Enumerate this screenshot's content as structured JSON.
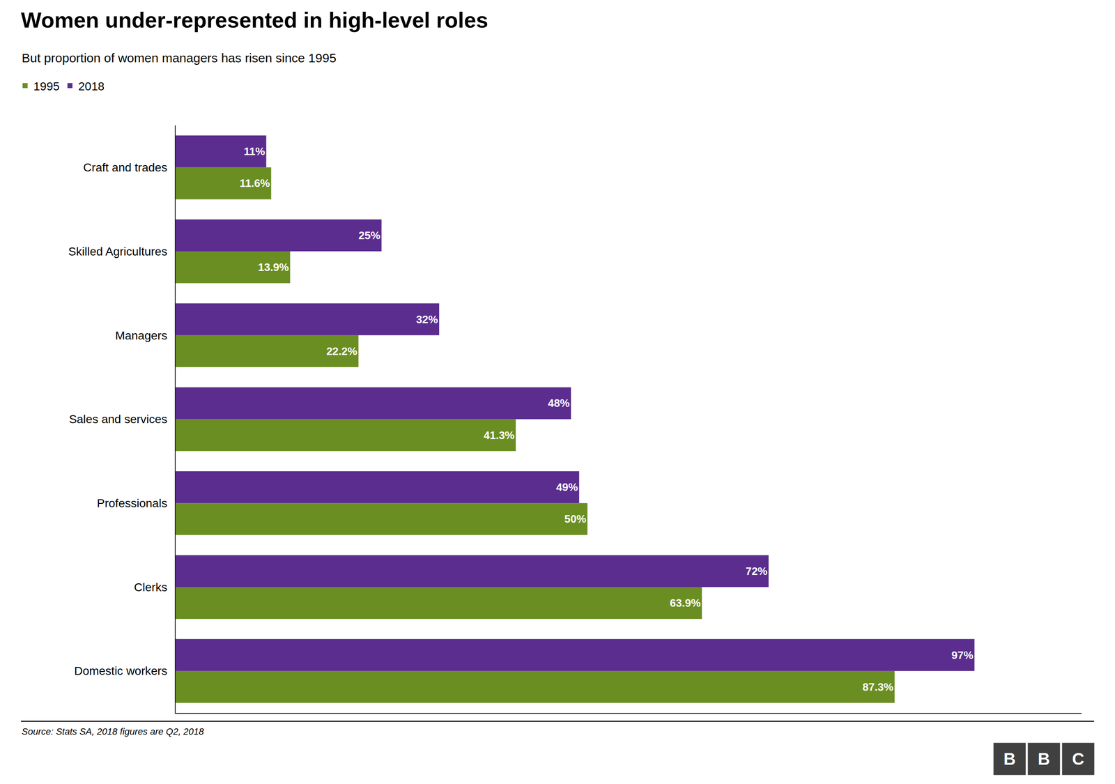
{
  "chart_data": {
    "type": "bar",
    "orientation": "horizontal",
    "title": "Women under-represented in high-level roles",
    "subtitle": "But proportion of women managers has risen since 1995",
    "annotations": [
      "Source: Stats SA, 2018 figures are Q2, 2018",
      "B",
      "B",
      "C"
    ],
    "categories": [
      "Domestic workers",
      "Clerks",
      "Professionals",
      "Sales and services",
      "Managers",
      "Skilled Agricultures",
      "Craft and trades"
    ],
    "series": [
      {
        "name": "1995",
        "color": "#6b8e23",
        "values": [
          87.3,
          63.9,
          50.0,
          41.3,
          22.2,
          13.9,
          11.6
        ],
        "value_labels": [
          "87.3%",
          "63.9%",
          "50%",
          "41.3%",
          "22.2%",
          "13.9%",
          "11.6%"
        ]
      },
      {
        "name": "2018",
        "color": "#5b2d8e",
        "values": [
          97.0,
          72.0,
          49.0,
          48.0,
          32.0,
          25.0,
          11.0
        ],
        "value_labels": [
          "97%",
          "72%",
          "49%",
          "48%",
          "32%",
          "25%",
          "11%"
        ]
      }
    ],
    "xlim": [
      0,
      110
    ],
    "xticks": [],
    "tick_labels": "y",
    "data_labels": true,
    "grid": false,
    "legend": "top left"
  }
}
